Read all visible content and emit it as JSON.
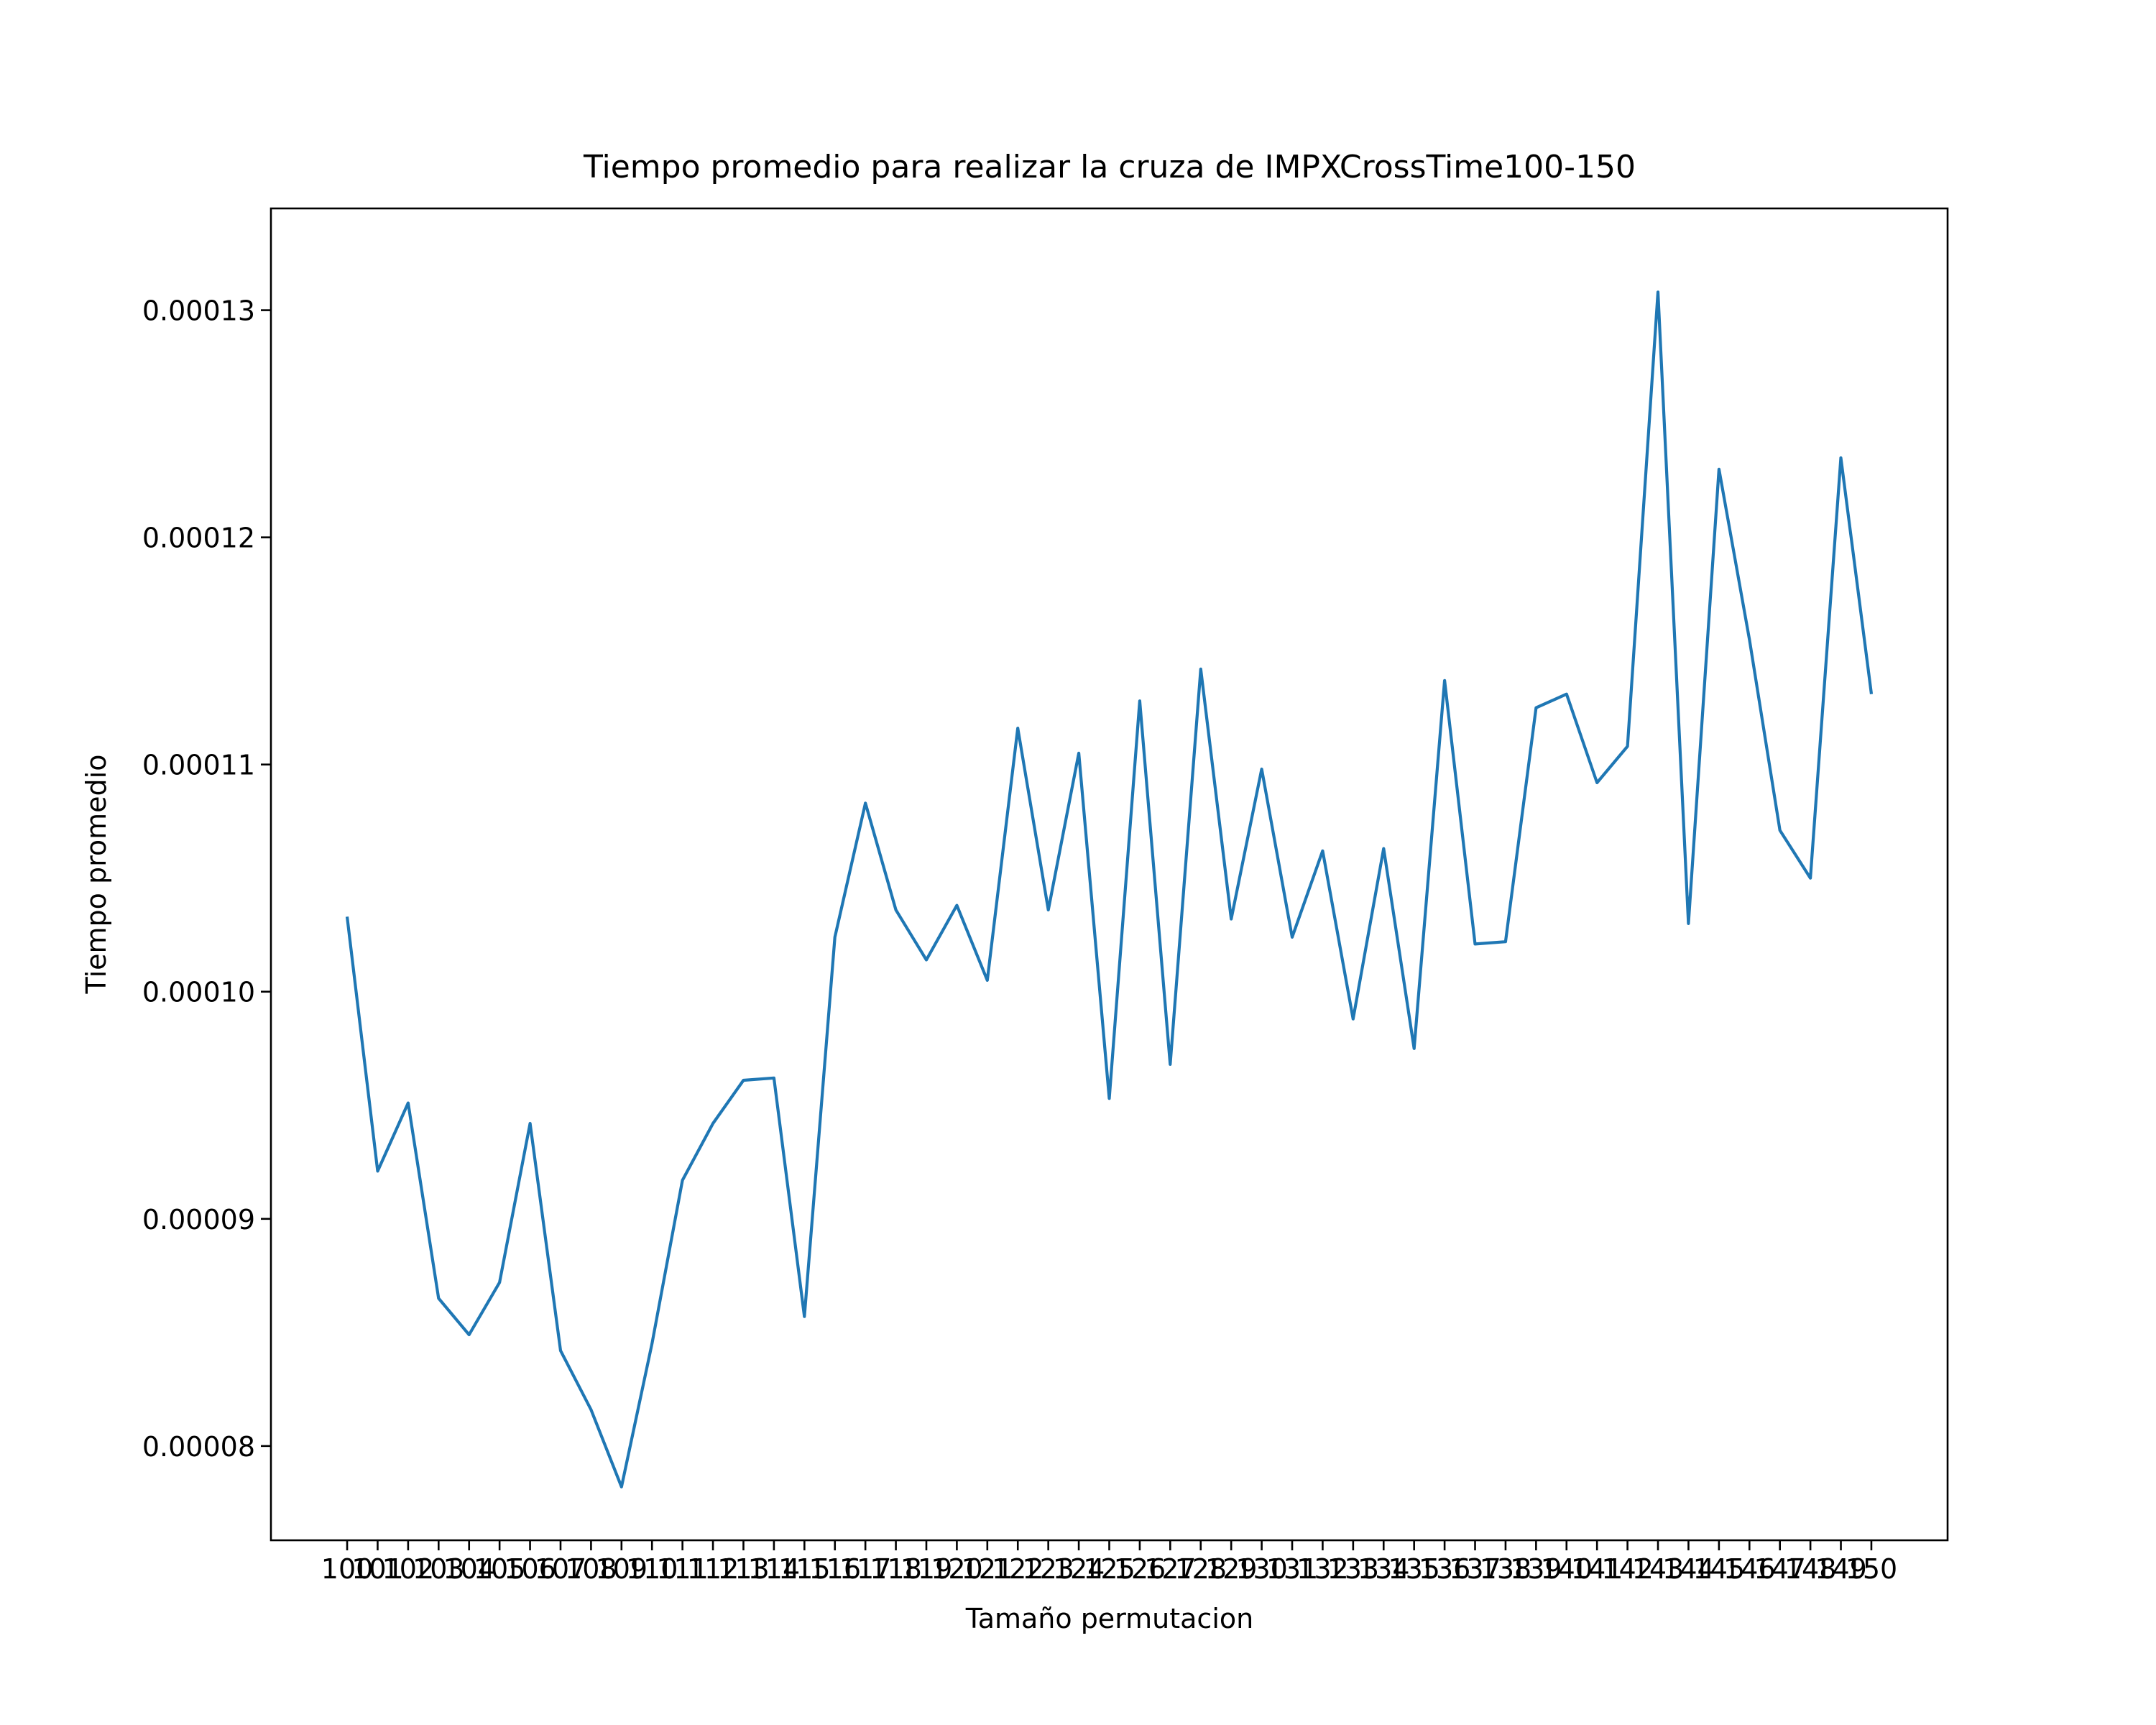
{
  "chart_data": {
    "type": "line",
    "title": "Tiempo promedio para realizar la cruza de IMPXCrossTime100-150",
    "xlabel": "Tamaño permutacion",
    "ylabel": "Tiempo promedio",
    "x": [
      100,
      101,
      102,
      103,
      104,
      105,
      106,
      107,
      108,
      109,
      110,
      111,
      112,
      113,
      114,
      115,
      116,
      117,
      118,
      119,
      120,
      121,
      122,
      123,
      124,
      125,
      126,
      127,
      128,
      129,
      130,
      131,
      132,
      133,
      134,
      135,
      136,
      137,
      138,
      139,
      140,
      141,
      142,
      143,
      144,
      145,
      146,
      147,
      148,
      149,
      150
    ],
    "y": [
      0.0001033,
      9.21e-05,
      9.51e-05,
      8.65e-05,
      8.49e-05,
      8.72e-05,
      9.42e-05,
      8.42e-05,
      8.16e-05,
      7.82e-05,
      8.45e-05,
      9.17e-05,
      9.42e-05,
      9.61e-05,
      9.62e-05,
      8.57e-05,
      0.0001024,
      0.0001083,
      0.0001036,
      0.0001014,
      0.0001038,
      0.0001005,
      0.0001116,
      0.0001036,
      0.0001105,
      9.53e-05,
      0.0001128,
      9.68e-05,
      0.0001142,
      0.0001032,
      0.0001098,
      0.0001024,
      0.0001062,
      9.88e-05,
      0.0001063,
      9.75e-05,
      0.0001137,
      0.0001021,
      0.0001022,
      0.0001125,
      0.0001131,
      0.0001092,
      0.0001108,
      0.0001308,
      0.000103,
      0.000123,
      0.0001155,
      0.0001071,
      0.000105,
      0.0001235,
      0.0001131
    ],
    "x_tick_labels": [
      "100",
      "101",
      "102",
      "103",
      "104",
      "105",
      "106",
      "107",
      "108",
      "109",
      "110",
      "111",
      "112",
      "113",
      "114",
      "115",
      "116",
      "117",
      "118",
      "119",
      "120",
      "121",
      "122",
      "123",
      "124",
      "125",
      "126",
      "127",
      "128",
      "129",
      "130",
      "131",
      "132",
      "133",
      "134",
      "135",
      "136",
      "137",
      "138",
      "139",
      "140",
      "141",
      "142",
      "143",
      "144",
      "145",
      "146",
      "147",
      "148",
      "149",
      "150"
    ],
    "y_ticks": [
      8e-05,
      9e-05,
      0.0001,
      0.00011,
      0.00012,
      0.00013
    ],
    "y_tick_labels": [
      "0.00008",
      "0.00009",
      "0.00010",
      "0.00011",
      "0.00012",
      "0.00013"
    ],
    "xlim": [
      97.5,
      152.5
    ],
    "ylim": [
      7.585e-05,
      0.00013448
    ],
    "line_color": "#1f77b4",
    "grid": false,
    "legend": "none"
  }
}
